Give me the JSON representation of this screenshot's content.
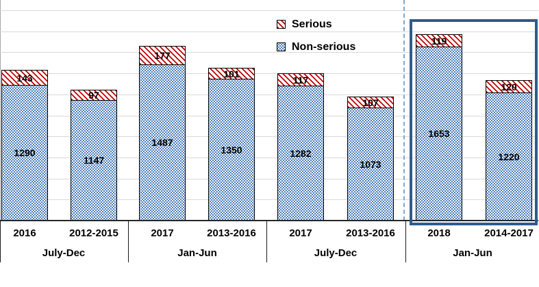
{
  "chart": {
    "colors": {
      "serious_hatch": "#c00000",
      "non_serious_dots": "#4f81bd",
      "highlight_border": "#2e5b8e",
      "dashed_divider": "#7ea6d4",
      "gridline": "#d9d9d9",
      "axis": "#262626"
    }
  },
  "chart_data": {
    "type": "bar",
    "stacked": true,
    "title": "",
    "xlabel": "",
    "ylabel": "",
    "ylim": [
      0,
      2000
    ],
    "gridline_step": 200,
    "grid": true,
    "y_axis_labels_shown": false,
    "legend_position": "top-center",
    "legend_items": [
      {
        "label": "Serious",
        "pattern": "red-diagonal-hatch"
      },
      {
        "label": "Non-serious",
        "pattern": "blue-dots"
      }
    ],
    "categories": [
      "2016",
      "2012-2015",
      "2017",
      "2013-2016",
      "2017",
      "2013-2016",
      "2018",
      "2014-2017"
    ],
    "group_labels": [
      "July-Dec",
      "Jan-Jun",
      "July-Dec",
      "Jan-Jun"
    ],
    "series": [
      {
        "name": "Non-serious",
        "values": [
          1290,
          1147,
          1487,
          1350,
          1282,
          1073,
          1653,
          1220
        ]
      },
      {
        "name": "Serious",
        "values": [
          143,
          97,
          177,
          101,
          117,
          107,
          119,
          120
        ]
      }
    ],
    "groups": [
      {
        "period": "July-Dec",
        "highlighted": false,
        "bars": [
          {
            "year": "2016",
            "non_serious": 1290,
            "serious": 143
          },
          {
            "year": "2012-2015",
            "non_serious": 1147,
            "serious": 97
          }
        ]
      },
      {
        "period": "Jan-Jun",
        "highlighted": false,
        "bars": [
          {
            "year": "2017",
            "non_serious": 1487,
            "serious": 177
          },
          {
            "year": "2013-2016",
            "non_serious": 1350,
            "serious": 101
          }
        ]
      },
      {
        "period": "July-Dec",
        "highlighted": false,
        "bars": [
          {
            "year": "2017",
            "non_serious": 1282,
            "serious": 117
          },
          {
            "year": "2013-2016",
            "non_serious": 1073,
            "serious": 107
          }
        ]
      },
      {
        "period": "Jan-Jun",
        "highlighted": true,
        "bars": [
          {
            "year": "2018",
            "non_serious": 1653,
            "serious": 119
          },
          {
            "year": "2014-2017",
            "non_serious": 1220,
            "serious": 120
          }
        ]
      }
    ],
    "annotations": {
      "dashed_divider_before_group_index": 3,
      "highlight_box_around_group_index": 3
    }
  }
}
